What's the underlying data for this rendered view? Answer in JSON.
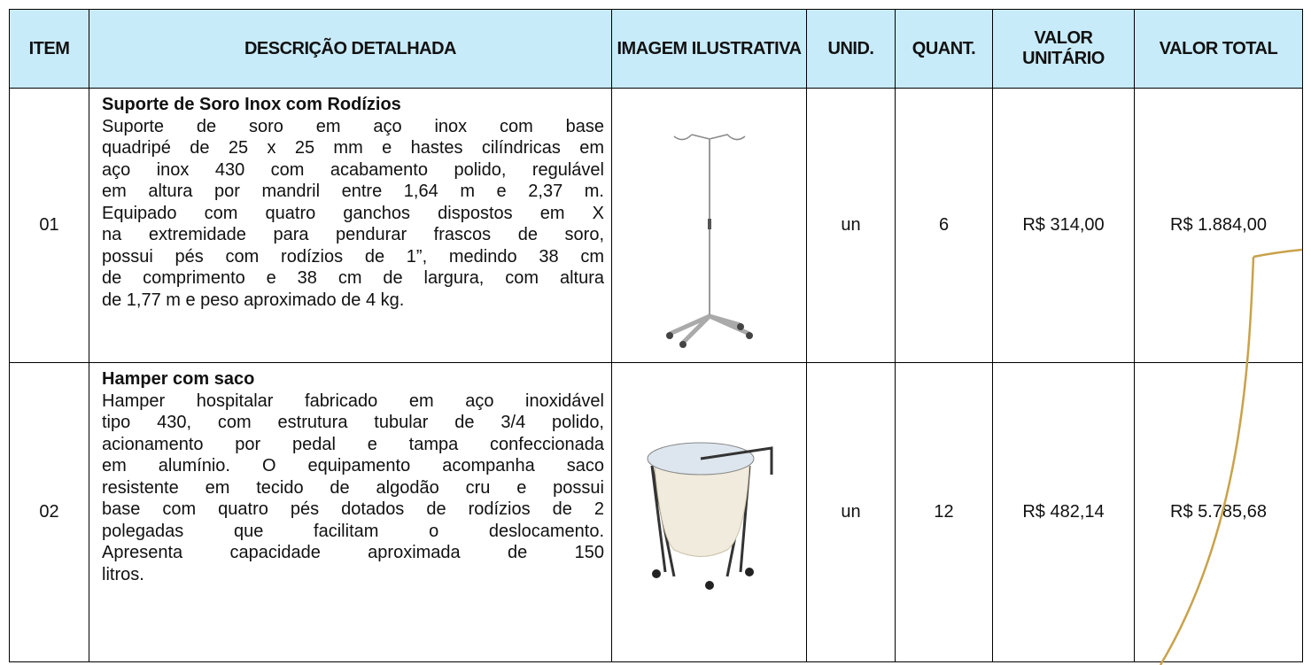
{
  "table": {
    "headers": [
      "ITEM",
      "DESCRIÇÃO DETALHADA",
      "IMAGEM ILUSTRATIVA",
      "UNID.",
      "QUANT.",
      "VALOR UNITÁRIO",
      "VALOR TOTAL"
    ],
    "rows": [
      {
        "item": "01",
        "title": "Suporte de Soro Inox com Rodízios",
        "lines": [
          "Suporte de soro em aço inox com base",
          "quadripé de 25 x 25 mm e hastes cilíndricas em",
          "aço inox 430 com acabamento polido, regulável",
          "em altura por mandril entre 1,64 m e 2,37 m.",
          "Equipado com quatro ganchos dispostos em X",
          "na extremidade para pendurar frascos de soro,",
          "possui pés com rodízios de 1”, medindo 38 cm",
          "de comprimento e 38 cm de largura, com altura",
          "de 1,77 m e peso aproximado de 4 kg."
        ],
        "unit": "un",
        "quantity": "6",
        "unit_price": "R$ 314,00",
        "total": "R$ 1.884,00"
      },
      {
        "item": "02",
        "title": "Hamper com saco",
        "lines": [
          "Hamper hospitalar fabricado em aço inoxidável",
          "tipo 430, com estrutura tubular de 3/4 polido,",
          "acionamento por pedal e tampa confeccionada",
          "em alumínio. O equipamento acompanha saco",
          "resistente em tecido de algodão cru e possui",
          "base com quatro pés dotados de rodízios de 2",
          "polegadas que facilitam o deslocamento.",
          "Apresenta capacidade aproximada de 150",
          "litros."
        ],
        "unit": "un",
        "quantity": "12",
        "unit_price": "R$ 482,14",
        "total": "R$ 5.785,68"
      }
    ]
  }
}
